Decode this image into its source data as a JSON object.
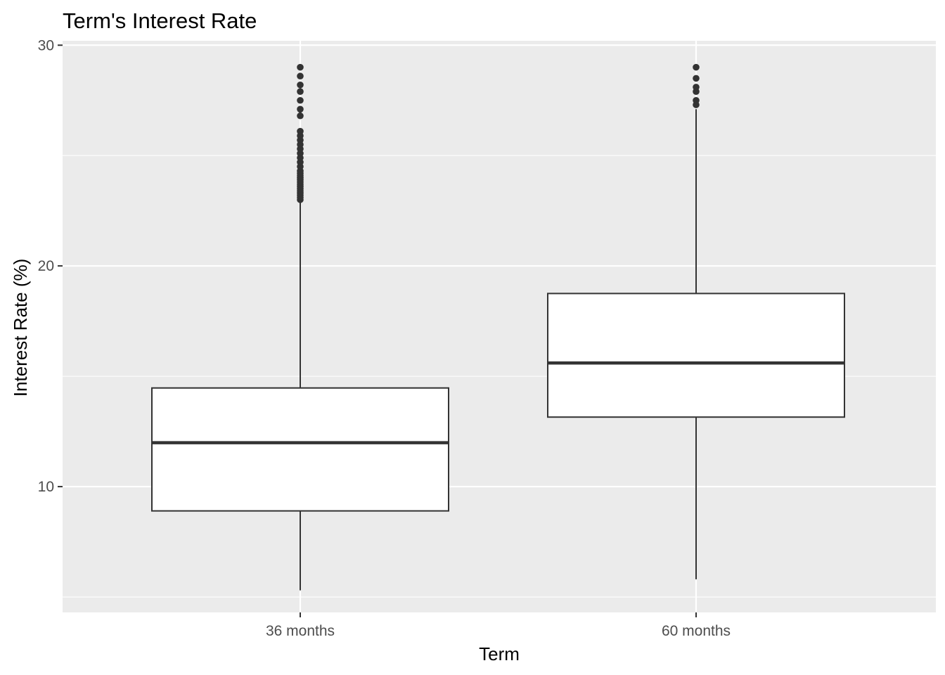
{
  "chart_data": {
    "type": "boxplot",
    "title": "Term's Interest Rate",
    "xlabel": "Term",
    "ylabel": "Interest Rate (%)",
    "ylim": [
      4.3,
      30.2
    ],
    "yticks": [
      "10",
      "20",
      "30"
    ],
    "grid": true,
    "panel_background": "#ebebeb",
    "categories": [
      "36 months",
      "60 months"
    ],
    "boxes": [
      {
        "category": "36 months",
        "whisker_low": 5.3,
        "q1": 8.9,
        "median": 11.99,
        "q3": 14.47,
        "whisker_high": 22.9,
        "outliers": [
          23.0,
          23.1,
          23.2,
          23.3,
          23.4,
          23.5,
          23.6,
          23.7,
          23.8,
          23.9,
          24.0,
          24.1,
          24.2,
          24.3,
          24.5,
          24.7,
          24.9,
          25.1,
          25.3,
          25.5,
          25.7,
          25.9,
          26.1,
          26.8,
          27.1,
          27.5,
          27.9,
          28.2,
          28.6,
          29.0
        ]
      },
      {
        "category": "60 months",
        "whisker_low": 5.8,
        "q1": 13.15,
        "median": 15.6,
        "q3": 18.75,
        "whisker_high": 27.1,
        "outliers": [
          27.3,
          27.5,
          27.9,
          28.1,
          28.5,
          29.0
        ]
      }
    ],
    "colors": {
      "box_fill": "#ffffff",
      "box_line": "#333333",
      "grid": "#ffffff"
    }
  }
}
